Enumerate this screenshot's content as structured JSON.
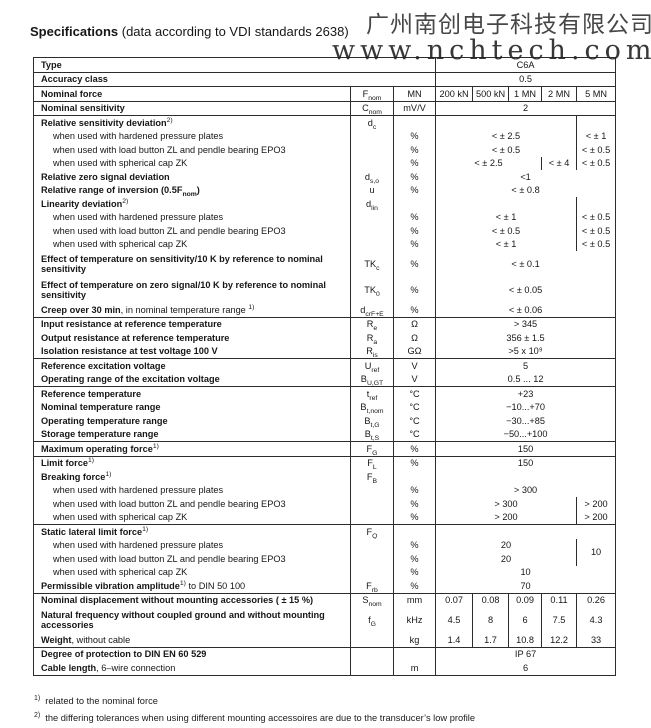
{
  "header": {
    "title_bold": "Specifications",
    "title_rest": " (data according to VDI standards 2638)"
  },
  "watermark": {
    "line1": "广州南创电子科技有限公司",
    "line2": "www.nchtech.com"
  },
  "columns": [
    "200 kN",
    "500 kN",
    "1 MN",
    "2 MN",
    "5 MN"
  ],
  "accent_colors": {
    "border": "#2c2c2c",
    "text": "#161616"
  },
  "rows": [
    {
      "name": "type",
      "wide": 1,
      "label": [
        {
          "t": "Type",
          "b": 1
        }
      ],
      "values": [
        {
          "t": "C6A",
          "s": 5
        }
      ]
    },
    {
      "name": "accuracy-class",
      "wide": 1,
      "top": 1,
      "label": [
        {
          "t": "Accuracy class",
          "b": 1
        }
      ],
      "values": [
        {
          "t": "0.5",
          "s": 5
        }
      ]
    },
    {
      "name": "nominal-force",
      "top": 1,
      "label": [
        {
          "t": "Nominal force",
          "b": 1
        }
      ],
      "sym": [
        "F",
        "nom"
      ],
      "unit": "MN",
      "values": [
        {
          "t": "200 kN",
          "s": 1
        },
        {
          "t": "500 kN",
          "s": 1
        },
        {
          "t": "1 MN",
          "s": 1
        },
        {
          "t": "2 MN",
          "s": 1
        },
        {
          "t": "5 MN",
          "s": 1
        }
      ]
    },
    {
      "name": "nominal-sensitivity",
      "top": 1,
      "label": [
        {
          "t": "Nominal sensitivity",
          "b": 1
        }
      ],
      "sym": [
        "C",
        "nom"
      ],
      "unit": "mV/V",
      "values": [
        {
          "t": "2",
          "s": 5
        }
      ]
    },
    {
      "name": "rel-sens-deviation",
      "top": 1,
      "label": [
        {
          "t": "Relative sensitivity deviation",
          "b": 1
        },
        {
          "t": "2)",
          "sup": 1
        }
      ],
      "sym": [
        "d",
        "c"
      ],
      "unit": "",
      "values": [
        {
          "t": "",
          "s": 4
        },
        {
          "t": "",
          "s": 1
        }
      ]
    },
    {
      "name": "rsd-hardened-plates",
      "ind": 1,
      "label": [
        {
          "t": "when used with hardened pressure plates"
        }
      ],
      "unit": "%",
      "values": [
        {
          "t": "< ± 2.5",
          "s": 4
        },
        {
          "t": "< ± 1",
          "s": 1
        }
      ]
    },
    {
      "name": "rsd-load-button",
      "ind": 1,
      "label": [
        {
          "t": "when used with load button ZL and pendle bearing EPO3"
        }
      ],
      "unit": "%",
      "values": [
        {
          "t": "< ± 0.5",
          "s": 4
        },
        {
          "t": "< ± 0.5",
          "s": 1
        }
      ]
    },
    {
      "name": "rsd-spherical-cap",
      "ind": 1,
      "label": [
        {
          "t": "when used with spherical cap ZK"
        }
      ],
      "unit": "%",
      "values": [
        {
          "t": "< ± 2.5",
          "s": 3
        },
        {
          "t": "< ± 4",
          "s": 1
        },
        {
          "t": "< ± 0.5",
          "s": 1
        }
      ]
    },
    {
      "name": "rel-zero-signal-deviation",
      "label": [
        {
          "t": "Relative zero signal deviation",
          "b": 1
        }
      ],
      "sym": [
        "d",
        "s,o"
      ],
      "unit": "%",
      "values": [
        {
          "t": "<1",
          "s": 5
        }
      ]
    },
    {
      "name": "rel-range-inversion",
      "label": [
        {
          "t": "Relative range of inversion (0.5F",
          "b": 1
        },
        {
          "t": "nom",
          "b": 1,
          "sub": 1
        },
        {
          "t": ")",
          "b": 1
        }
      ],
      "sym": [
        "u",
        ""
      ],
      "unit": "%",
      "values": [
        {
          "t": "< ± 0.8",
          "s": 5
        }
      ]
    },
    {
      "name": "linearity-deviation",
      "label": [
        {
          "t": "Linearity deviation",
          "b": 1
        },
        {
          "t": "2)",
          "sup": 1
        }
      ],
      "sym": [
        "d",
        "lin"
      ],
      "unit": "",
      "values": [
        {
          "t": "",
          "s": 4
        },
        {
          "t": "",
          "s": 1
        }
      ]
    },
    {
      "name": "lin-hardened-plates",
      "ind": 1,
      "label": [
        {
          "t": "when used with hardened pressure plates"
        }
      ],
      "unit": "%",
      "values": [
        {
          "t": "< ± 1",
          "s": 4
        },
        {
          "t": "< ± 0.5",
          "s": 1
        }
      ]
    },
    {
      "name": "lin-load-button",
      "ind": 1,
      "label": [
        {
          "t": "when used with load button ZL and pendle bearing EPO3"
        }
      ],
      "unit": "%",
      "values": [
        {
          "t": "< ± 0.5",
          "s": 4
        },
        {
          "t": "< ± 0.5",
          "s": 1
        }
      ]
    },
    {
      "name": "lin-spherical-cap",
      "ind": 1,
      "label": [
        {
          "t": "when used with spherical cap ZK"
        }
      ],
      "unit": "%",
      "values": [
        {
          "t": "< ± 1",
          "s": 4
        },
        {
          "t": "< ± 0.5",
          "s": 1
        }
      ]
    },
    {
      "name": "temp-effect-sensitivity",
      "tall": 1,
      "label": [
        {
          "t": "Effect of temperature on sensitivity/10 K by reference to nominal sensitivity",
          "b": 1
        }
      ],
      "sym": [
        "TK",
        "c"
      ],
      "unit": "%",
      "values": [
        {
          "t": "< ± 0.1",
          "s": 5
        }
      ]
    },
    {
      "name": "temp-effect-zero-signal",
      "tall": 1,
      "label": [
        {
          "t": "Effect of temperature on zero signal/10 K by reference to nominal sensitivity",
          "b": 1
        }
      ],
      "sym": [
        "TK",
        "0"
      ],
      "unit": "%",
      "values": [
        {
          "t": "< ± 0.05",
          "s": 5
        }
      ]
    },
    {
      "name": "creep",
      "label": [
        {
          "t": "Creep over 30 min",
          "b": 1
        },
        {
          "t": ", in nominal temperature range "
        },
        {
          "t": "1)",
          "sup": 1
        }
      ],
      "sym": [
        "d",
        "crF+E"
      ],
      "unit": "%",
      "values": [
        {
          "t": "< ± 0.06",
          "s": 5
        }
      ]
    },
    {
      "name": "input-resistance",
      "top": 1,
      "label": [
        {
          "t": "Input resistance at reference temperature",
          "b": 1
        }
      ],
      "sym": [
        "R",
        "e"
      ],
      "unit": "Ω",
      "values": [
        {
          "t": "> 345",
          "s": 5
        }
      ]
    },
    {
      "name": "output-resistance",
      "label": [
        {
          "t": "Output resistance at reference temperature",
          "b": 1
        }
      ],
      "sym": [
        "R",
        "a"
      ],
      "unit": "Ω",
      "values": [
        {
          "t": "356 ± 1.5",
          "s": 5
        }
      ]
    },
    {
      "name": "isolation-resistance",
      "label": [
        {
          "t": "Isolation resistance at test voltage 100 V",
          "b": 1
        }
      ],
      "sym": [
        "R",
        "is"
      ],
      "unit": "GΩ",
      "values": [
        {
          "t": ">5 x 10⁹",
          "s": 5
        }
      ]
    },
    {
      "name": "ref-excitation-voltage",
      "top": 1,
      "label": [
        {
          "t": "Reference excitation voltage",
          "b": 1
        }
      ],
      "sym": [
        "U",
        "ref"
      ],
      "unit": "V",
      "values": [
        {
          "t": "5",
          "s": 5
        }
      ]
    },
    {
      "name": "excitation-voltage-range",
      "label": [
        {
          "t": "Operating range of the excitation voltage",
          "b": 1
        }
      ],
      "sym": [
        "B",
        "U,GT"
      ],
      "unit": "V",
      "values": [
        {
          "t": "0.5 ... 12",
          "s": 5
        }
      ]
    },
    {
      "name": "ref-temperature",
      "top": 1,
      "label": [
        {
          "t": "Reference temperature",
          "b": 1
        }
      ],
      "sym": [
        "t",
        "ref"
      ],
      "unit": "°C",
      "values": [
        {
          "t": "+23",
          "s": 5
        }
      ]
    },
    {
      "name": "nominal-temp-range",
      "label": [
        {
          "t": "Nominal temperature range",
          "b": 1
        }
      ],
      "sym": [
        "B",
        "t,nom"
      ],
      "unit": "°C",
      "values": [
        {
          "t": "−10...+70",
          "s": 5
        }
      ]
    },
    {
      "name": "operating-temp-range",
      "label": [
        {
          "t": "Operating temperature range",
          "b": 1
        }
      ],
      "sym": [
        "B",
        "t,G"
      ],
      "unit": "°C",
      "values": [
        {
          "t": "−30...+85",
          "s": 5
        }
      ]
    },
    {
      "name": "storage-temp-range",
      "label": [
        {
          "t": "Storage temperature range",
          "b": 1
        }
      ],
      "sym": [
        "B",
        "t,S"
      ],
      "unit": "°C",
      "values": [
        {
          "t": "−50...+100",
          "s": 5
        }
      ]
    },
    {
      "name": "max-operating-force",
      "top": 1,
      "label": [
        {
          "t": "Maximum operating force",
          "b": 1
        },
        {
          "t": "1)",
          "sup": 1
        }
      ],
      "sym": [
        "F",
        "G"
      ],
      "unit": "%",
      "values": [
        {
          "t": "150",
          "s": 5
        }
      ]
    },
    {
      "name": "limit-force",
      "top": 1,
      "label": [
        {
          "t": "Limit force",
          "b": 1
        },
        {
          "t": "1)",
          "sup": 1
        }
      ],
      "sym": [
        "F",
        "L"
      ],
      "unit": "%",
      "values": [
        {
          "t": "150",
          "s": 5
        }
      ]
    },
    {
      "name": "breaking-force",
      "label": [
        {
          "t": "Breaking force",
          "b": 1
        },
        {
          "t": "1)",
          "sup": 1
        }
      ],
      "sym": [
        "F",
        "B"
      ],
      "unit": "",
      "values": [
        {
          "t": "",
          "s": 5
        }
      ]
    },
    {
      "name": "bf-hardened-plates",
      "ind": 1,
      "label": [
        {
          "t": "when used with hardened pressure plates"
        }
      ],
      "unit": "%",
      "values": [
        {
          "t": "> 300",
          "s": 5
        }
      ]
    },
    {
      "name": "bf-load-button",
      "ind": 1,
      "label": [
        {
          "t": "when used with load button ZL and pendle bearing EPO3"
        }
      ],
      "unit": "%",
      "values": [
        {
          "t": "> 300",
          "s": 4
        },
        {
          "t": "> 200",
          "s": 1
        }
      ]
    },
    {
      "name": "bf-spherical-cap",
      "ind": 1,
      "label": [
        {
          "t": "when used with spherical cap ZK"
        }
      ],
      "unit": "%",
      "values": [
        {
          "t": "> 200",
          "s": 4
        },
        {
          "t": "> 200",
          "s": 1
        }
      ]
    },
    {
      "name": "static-lateral-limit-force",
      "top": 1,
      "label": [
        {
          "t": "Static lateral limit force",
          "b": 1
        },
        {
          "t": "1)",
          "sup": 1
        }
      ],
      "sym": [
        "F",
        "Q"
      ],
      "unit": "",
      "values": [
        {
          "t": "",
          "s": 5
        }
      ]
    },
    {
      "name": "sl-hardened-plates",
      "ind": 1,
      "label": [
        {
          "t": "when used with hardened pressure plates"
        }
      ],
      "unit": "%",
      "values": [
        {
          "t": "20",
          "s": 4
        },
        {
          "t": "10",
          "s": 1,
          "r": 2
        }
      ]
    },
    {
      "name": "sl-load-button",
      "ind": 1,
      "label": [
        {
          "t": "when used with load button ZL and pendle bearing EPO3"
        }
      ],
      "unit": "%",
      "values": [
        {
          "t": "20",
          "s": 4
        }
      ]
    },
    {
      "name": "sl-spherical-cap",
      "ind": 1,
      "label": [
        {
          "t": "when used with spherical cap ZK"
        }
      ],
      "unit": "%",
      "values": [
        {
          "t": "10",
          "s": 5
        }
      ]
    },
    {
      "name": "vibration-amplitude",
      "label": [
        {
          "t": "Permissible vibration amplitude",
          "b": 1
        },
        {
          "t": "1)",
          "sup": 1
        },
        {
          "t": " to DIN 50 100"
        }
      ],
      "sym": [
        "F",
        "rb"
      ],
      "unit": "%",
      "values": [
        {
          "t": "70",
          "s": 5
        }
      ]
    },
    {
      "name": "nominal-displacement",
      "top": 1,
      "label": [
        {
          "t": "Nominal displacement without mounting accessories ( ± 15 %)",
          "b": 1
        }
      ],
      "sym": [
        "S",
        "nom"
      ],
      "unit": "mm",
      "values": [
        {
          "t": "0.07",
          "s": 1
        },
        {
          "t": "0.08",
          "s": 1
        },
        {
          "t": "0.09",
          "s": 1
        },
        {
          "t": "0.11",
          "s": 1
        },
        {
          "t": "0.26",
          "s": 1
        }
      ]
    },
    {
      "name": "natural-frequency",
      "tall": 1,
      "label": [
        {
          "t": "Natural frequency without coupled ground and without mounting accessories",
          "b": 1
        }
      ],
      "sym": [
        "f",
        "G"
      ],
      "unit": "kHz",
      "values": [
        {
          "t": "4.5",
          "s": 1
        },
        {
          "t": "8",
          "s": 1
        },
        {
          "t": "6",
          "s": 1
        },
        {
          "t": "7.5",
          "s": 1
        },
        {
          "t": "4.3",
          "s": 1
        }
      ]
    },
    {
      "name": "weight",
      "label": [
        {
          "t": "Weight",
          "b": 1
        },
        {
          "t": ", without cable"
        }
      ],
      "unit": "kg",
      "values": [
        {
          "t": "1.4",
          "s": 1
        },
        {
          "t": "1.7",
          "s": 1
        },
        {
          "t": "10.8",
          "s": 1
        },
        {
          "t": "12.2",
          "s": 1
        },
        {
          "t": "33",
          "s": 1
        }
      ]
    },
    {
      "name": "protection-degree",
      "top": 1,
      "label": [
        {
          "t": "Degree of protection to DIN EN 60 529",
          "b": 1
        }
      ],
      "unit": "",
      "values": [
        {
          "t": "IP 67",
          "s": 5
        }
      ]
    },
    {
      "name": "cable-length",
      "label": [
        {
          "t": "Cable length",
          "b": 1
        },
        {
          "t": ", 6–wire connection"
        }
      ],
      "unit": "m",
      "values": [
        {
          "t": "6",
          "s": 5
        }
      ]
    }
  ],
  "footnotes": [
    {
      "sup": "1)",
      "text": "related to the nominal force"
    },
    {
      "sup": "2)",
      "text": "the differing tolerances when using different mounting accessoires are due to the transducer’s low profile"
    }
  ]
}
